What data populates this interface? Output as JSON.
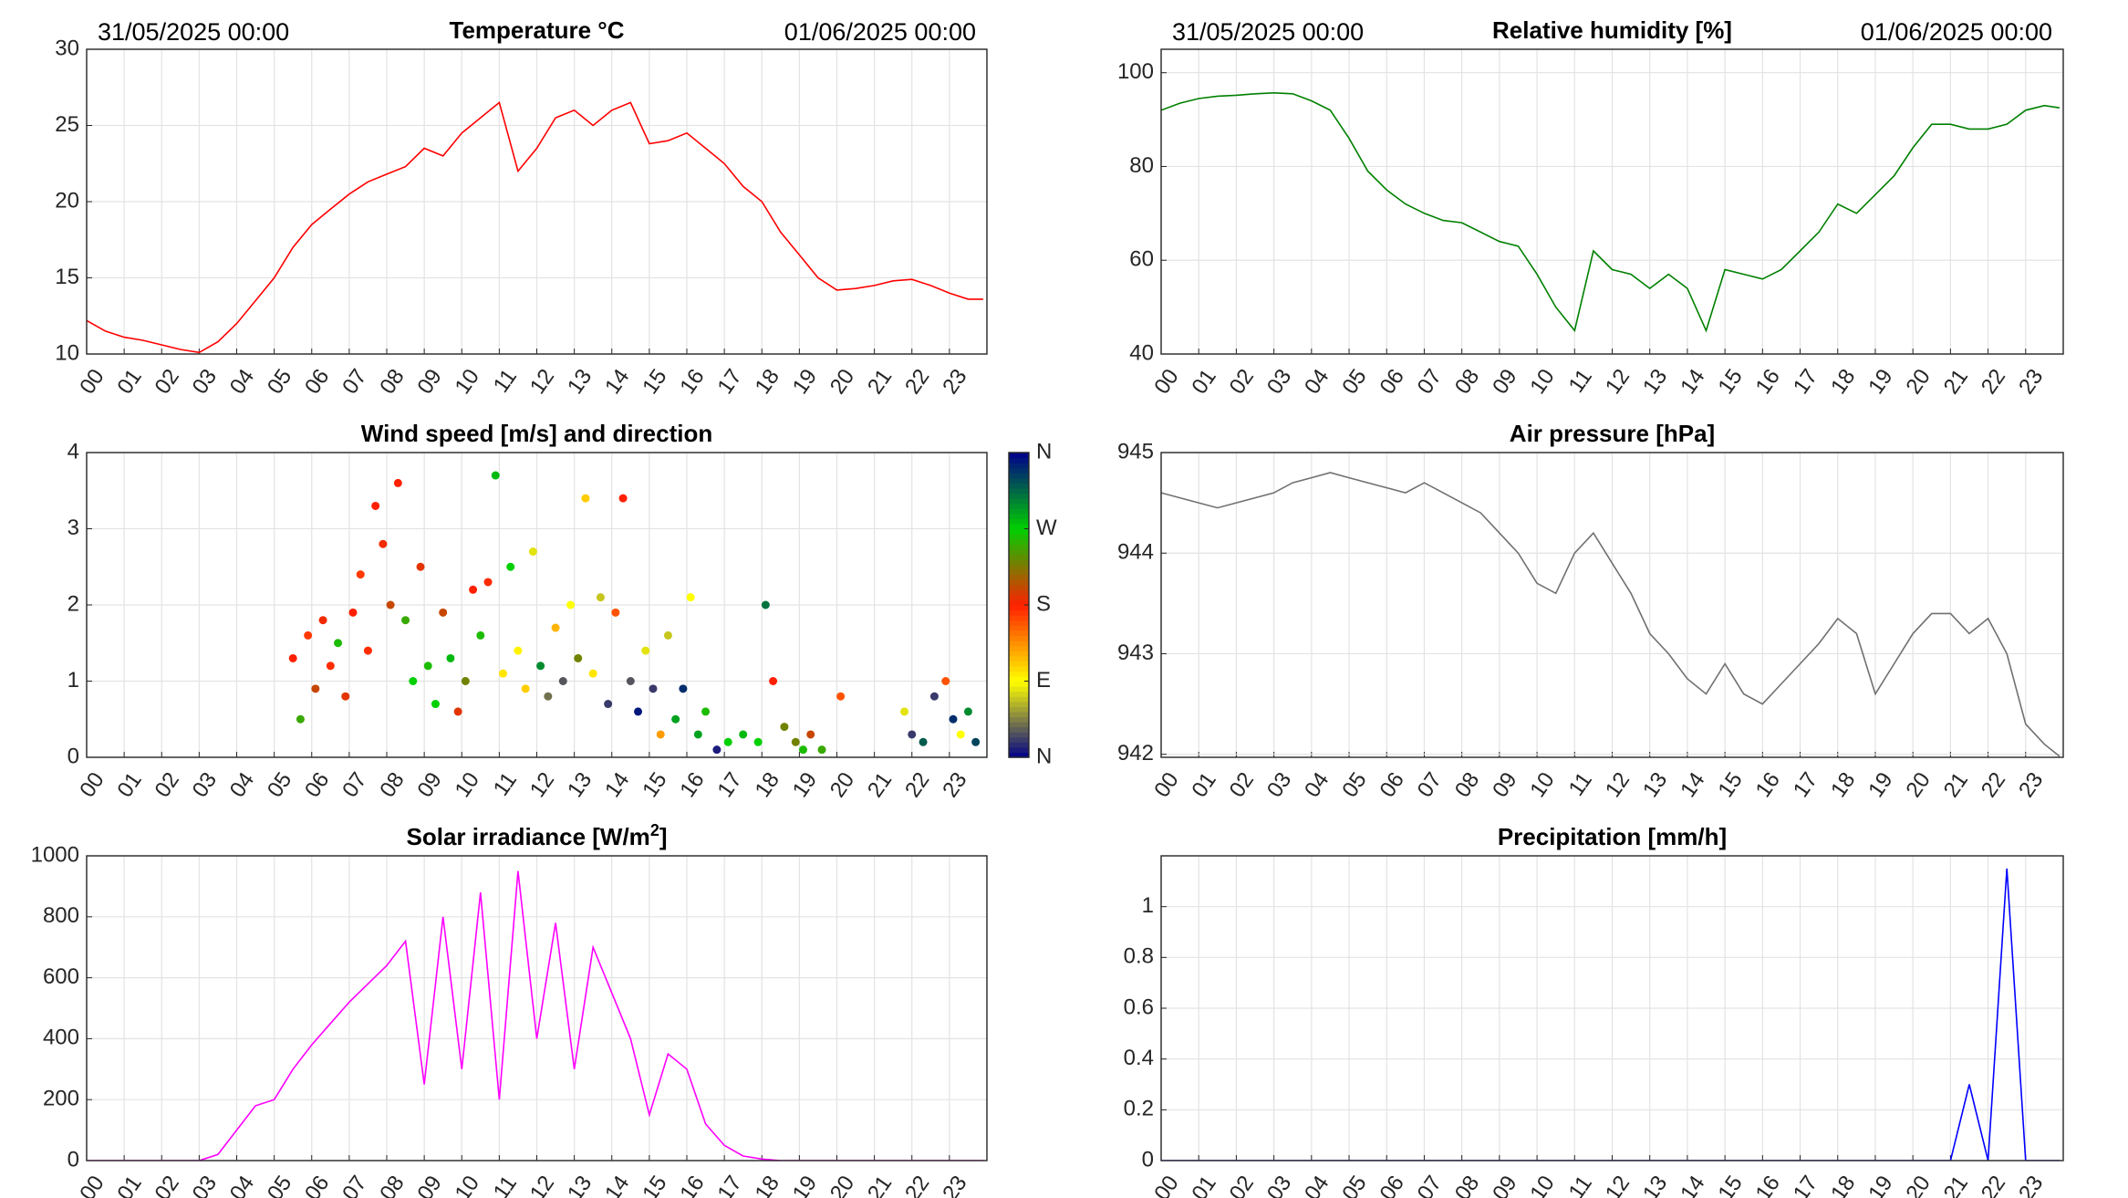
{
  "xaxis": {
    "xlim": [
      0,
      24
    ],
    "xticks": [
      {
        "value": 0,
        "label": "00"
      },
      {
        "value": 1,
        "label": "01"
      },
      {
        "value": 2,
        "label": "02"
      },
      {
        "value": 3,
        "label": "03"
      },
      {
        "value": 4,
        "label": "04"
      },
      {
        "value": 5,
        "label": "05"
      },
      {
        "value": 6,
        "label": "06"
      },
      {
        "value": 7,
        "label": "07"
      },
      {
        "value": 8,
        "label": "08"
      },
      {
        "value": 9,
        "label": "09"
      },
      {
        "value": 10,
        "label": "10"
      },
      {
        "value": 11,
        "label": "11"
      },
      {
        "value": 12,
        "label": "12"
      },
      {
        "value": 13,
        "label": "13"
      },
      {
        "value": 14,
        "label": "14"
      },
      {
        "value": 15,
        "label": "15"
      },
      {
        "value": 16,
        "label": "16"
      },
      {
        "value": 17,
        "label": "17"
      },
      {
        "value": 18,
        "label": "18"
      },
      {
        "value": 19,
        "label": "19"
      },
      {
        "value": 20,
        "label": "20"
      },
      {
        "value": 21,
        "label": "21"
      },
      {
        "value": 22,
        "label": "22"
      },
      {
        "value": 23,
        "label": "23"
      }
    ]
  },
  "chart_data": [
    {
      "type": "line",
      "title": "Temperature °C",
      "start_label": "31/05/2025 00:00",
      "end_label": "01/06/2025 00:00",
      "color": "#ff0000",
      "grid": true,
      "ylim": [
        10,
        30
      ],
      "yticks": [
        10,
        15,
        20,
        25,
        30
      ],
      "x": [
        0,
        0.5,
        1,
        1.5,
        2,
        2.5,
        3,
        3.5,
        4,
        4.5,
        5,
        5.5,
        6,
        6.5,
        7,
        7.5,
        8,
        8.5,
        9,
        9.5,
        10,
        10.5,
        11,
        11.5,
        12,
        12.5,
        13,
        13.5,
        14,
        14.5,
        15,
        15.5,
        16,
        16.5,
        17,
        17.5,
        18,
        18.5,
        19,
        19.5,
        20,
        20.5,
        21,
        21.5,
        22,
        22.5,
        23,
        23.5,
        23.9
      ],
      "values": [
        12.2,
        11.5,
        11.1,
        10.9,
        10.6,
        10.3,
        10.1,
        10.8,
        12,
        13.5,
        15,
        17,
        18.5,
        19.5,
        20.5,
        21.3,
        21.8,
        22.3,
        23.5,
        23,
        24.5,
        25.5,
        26.5,
        22,
        23.5,
        25.5,
        26,
        25,
        26,
        26.5,
        23.8,
        24,
        24.5,
        23.5,
        22.5,
        21,
        20,
        18,
        16.5,
        15,
        14.2,
        14.3,
        14.5,
        14.8,
        14.9,
        14.5,
        14,
        13.6,
        13.6
      ]
    },
    {
      "type": "line",
      "title": "Relative humidity [%]",
      "start_label": "31/05/2025 00:00",
      "end_label": "01/06/2025 00:00",
      "color": "#008000",
      "grid": true,
      "ylim": [
        40,
        105
      ],
      "yticks": [
        40,
        60,
        80,
        100
      ],
      "x": [
        0,
        0.5,
        1,
        1.5,
        2,
        2.5,
        3,
        3.5,
        4,
        4.5,
        5,
        5.5,
        6,
        6.5,
        7,
        7.5,
        8,
        8.5,
        9,
        9.5,
        10,
        10.5,
        11,
        11.5,
        12,
        12.5,
        13,
        13.5,
        14,
        14.5,
        15,
        15.5,
        16,
        16.5,
        17,
        17.5,
        18,
        18.5,
        19,
        19.5,
        20,
        20.5,
        21,
        21.5,
        22,
        22.5,
        23,
        23.5,
        23.9
      ],
      "values": [
        92,
        93.5,
        94.5,
        95,
        95.2,
        95.5,
        95.7,
        95.5,
        94,
        92,
        86,
        79,
        75,
        72,
        70,
        68.5,
        68,
        66,
        64,
        63,
        57,
        50,
        45,
        62,
        58,
        57,
        54,
        57,
        54,
        45,
        58,
        57,
        56,
        58,
        62,
        66,
        72,
        70,
        74,
        78,
        84,
        89,
        89,
        88,
        88,
        89,
        92,
        93,
        92.5
      ]
    },
    {
      "type": "scatter",
      "title": "Wind speed [m/s] and direction",
      "grid": true,
      "ylim": [
        0,
        4
      ],
      "yticks": [
        0,
        1,
        2,
        3,
        4
      ],
      "colorbar": {
        "lim": [
          0,
          360
        ],
        "colormap": [
          "#00008b",
          "#ffff00",
          "#ff2000",
          "#00d000",
          "#00008b"
        ],
        "ticks": [
          {
            "value": 0,
            "label": "N"
          },
          {
            "value": 90,
            "label": "E"
          },
          {
            "value": 180,
            "label": "S"
          },
          {
            "value": 270,
            "label": "W"
          },
          {
            "value": 360,
            "label": "N"
          }
        ]
      },
      "x": [
        5.5,
        5.7,
        5.9,
        6.1,
        6.3,
        6.5,
        6.7,
        6.9,
        7.1,
        7.3,
        7.5,
        7.7,
        7.9,
        8.1,
        8.3,
        8.5,
        8.7,
        8.9,
        9.1,
        9.3,
        9.5,
        9.7,
        9.9,
        10.1,
        10.3,
        10.5,
        10.7,
        10.9,
        11.1,
        11.3,
        11.5,
        11.7,
        11.9,
        12.1,
        12.3,
        12.5,
        12.7,
        12.9,
        13.1,
        13.3,
        13.5,
        13.7,
        13.9,
        14.1,
        14.3,
        14.5,
        14.7,
        14.9,
        15.1,
        15.3,
        15.5,
        15.7,
        15.9,
        16.1,
        16.3,
        16.5,
        16.8,
        17.1,
        17.5,
        17.9,
        18.1,
        18.3,
        18.6,
        18.9,
        19.1,
        19.3,
        19.6,
        20.1,
        21.8,
        22.0,
        22.3,
        22.6,
        22.9,
        23.1,
        23.3,
        23.5,
        23.7
      ],
      "values": [
        1.3,
        0.5,
        1.6,
        0.9,
        1.8,
        1.2,
        1.5,
        0.8,
        1.9,
        2.4,
        1.4,
        3.3,
        2.8,
        2.0,
        3.6,
        1.8,
        1.0,
        2.5,
        1.2,
        0.7,
        1.9,
        1.3,
        0.6,
        1.0,
        2.2,
        1.6,
        2.3,
        3.7,
        1.1,
        2.5,
        1.4,
        0.9,
        2.7,
        1.2,
        0.8,
        1.7,
        1.0,
        2.0,
        1.3,
        3.4,
        1.1,
        2.1,
        0.7,
        1.9,
        3.4,
        1.0,
        0.6,
        1.4,
        0.9,
        0.3,
        1.6,
        0.5,
        0.9,
        2.1,
        0.3,
        0.6,
        0.1,
        0.2,
        0.3,
        0.2,
        2.0,
        1.0,
        0.4,
        0.2,
        0.1,
        0.3,
        0.1,
        0.8,
        0.6,
        0.3,
        0.2,
        0.8,
        1.0,
        0.5,
        0.3,
        0.6,
        0.2
      ],
      "directions": [
        180,
        250,
        170,
        200,
        185,
        175,
        260,
        190,
        180,
        170,
        175,
        180,
        185,
        200,
        180,
        250,
        270,
        190,
        260,
        270,
        200,
        280,
        190,
        230,
        180,
        260,
        175,
        280,
        100,
        270,
        95,
        110,
        80,
        300,
        40,
        120,
        30,
        90,
        230,
        110,
        100,
        70,
        20,
        160,
        180,
        30,
        350,
        80,
        20,
        130,
        70,
        290,
        340,
        90,
        290,
        260,
        10,
        270,
        280,
        270,
        310,
        180,
        230,
        230,
        260,
        200,
        250,
        160,
        80,
        20,
        320,
        20,
        160,
        340,
        90,
        300,
        330
      ]
    },
    {
      "type": "line",
      "title": "Air pressure [hPa]",
      "color": "#707070",
      "grid": true,
      "ylim": [
        941.97,
        945
      ],
      "yticks": [
        942,
        943,
        944,
        945
      ],
      "x": [
        0,
        0.5,
        1,
        1.5,
        2,
        2.5,
        3,
        3.5,
        4,
        4.5,
        5,
        5.5,
        6,
        6.5,
        7,
        7.5,
        8,
        8.5,
        9,
        9.5,
        10,
        10.5,
        11,
        11.5,
        12,
        12.5,
        13,
        13.5,
        14,
        14.5,
        15,
        15.5,
        16,
        16.5,
        17,
        17.5,
        18,
        18.5,
        19,
        19.5,
        20,
        20.5,
        21,
        21.5,
        22,
        22.5,
        23,
        23.5,
        23.9
      ],
      "values": [
        944.6,
        944.55,
        944.5,
        944.45,
        944.5,
        944.55,
        944.6,
        944.7,
        944.75,
        944.8,
        944.75,
        944.7,
        944.65,
        944.6,
        944.7,
        944.6,
        944.5,
        944.4,
        944.2,
        944.0,
        943.7,
        943.6,
        944.0,
        944.2,
        943.9,
        943.6,
        943.2,
        943.0,
        942.75,
        942.6,
        942.9,
        942.6,
        942.5,
        942.7,
        942.9,
        943.1,
        943.35,
        943.2,
        942.6,
        942.9,
        943.2,
        943.4,
        943.4,
        943.2,
        943.35,
        943.0,
        942.3,
        942.1,
        941.98
      ]
    },
    {
      "type": "line",
      "title": "Solar irradiance [W/m",
      "title_sup": "2",
      "title_end": "]",
      "color": "#ff00ff",
      "grid": true,
      "ylim": [
        0,
        1000
      ],
      "yticks": [
        0,
        200,
        400,
        600,
        800,
        1000
      ],
      "x": [
        0,
        0.5,
        1,
        1.5,
        2,
        2.5,
        3,
        3.5,
        4,
        4.5,
        5,
        5.5,
        6,
        6.5,
        7,
        7.5,
        8,
        8.5,
        9,
        9.5,
        10,
        10.5,
        11,
        11.5,
        12,
        12.5,
        13,
        13.5,
        14,
        14.5,
        15,
        15.5,
        16,
        16.5,
        17,
        17.5,
        18,
        18.5,
        19,
        19.5,
        20,
        20.5,
        21,
        21.5,
        22,
        22.5,
        23,
        23.5,
        23.9
      ],
      "values": [
        0,
        0,
        0,
        0,
        0,
        0,
        0,
        20,
        100,
        180,
        200,
        300,
        380,
        450,
        520,
        580,
        640,
        720,
        250,
        800,
        300,
        880,
        200,
        950,
        400,
        780,
        300,
        700,
        550,
        400,
        150,
        350,
        300,
        120,
        50,
        15,
        5,
        0,
        0,
        0,
        0,
        0,
        0,
        0,
        0,
        0,
        0,
        0,
        0
      ]
    },
    {
      "type": "line",
      "title": "Precipitation [mm/h]",
      "color": "#0000ff",
      "grid": true,
      "ylim": [
        0,
        1.2
      ],
      "yticks": [
        0,
        0.2,
        0.4,
        0.6,
        0.8,
        1
      ],
      "x": [
        0,
        0.5,
        1,
        1.5,
        2,
        2.5,
        3,
        3.5,
        4,
        4.5,
        5,
        5.5,
        6,
        6.5,
        7,
        7.5,
        8,
        8.5,
        9,
        9.5,
        10,
        10.5,
        11,
        11.5,
        12,
        12.5,
        13,
        13.5,
        14,
        14.5,
        15,
        15.5,
        16,
        16.5,
        17,
        17.5,
        18,
        18.5,
        19,
        19.5,
        20,
        20.5,
        21,
        21.5,
        22,
        22.5,
        23,
        23.5,
        23.9
      ],
      "values": [
        0,
        0,
        0,
        0,
        0,
        0,
        0,
        0,
        0,
        0,
        0,
        0,
        0,
        0,
        0,
        0,
        0,
        0,
        0,
        0,
        0,
        0,
        0,
        0,
        0,
        0,
        0,
        0,
        0,
        0,
        0,
        0,
        0,
        0,
        0,
        0,
        0,
        0,
        0,
        0,
        0,
        0,
        0,
        0.3,
        0,
        1.15,
        0,
        0,
        0
      ]
    }
  ]
}
